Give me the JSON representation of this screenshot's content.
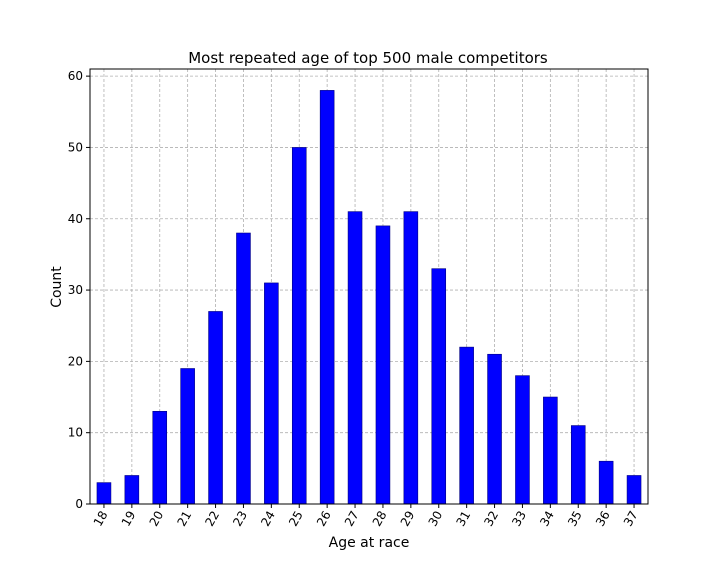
{
  "chart_data": {
    "type": "bar",
    "title": "Most repeated age of top 500 male competitors",
    "xlabel": "Age at race",
    "ylabel": "Count",
    "categories": [
      "18",
      "19",
      "20",
      "21",
      "22",
      "23",
      "24",
      "25",
      "26",
      "27",
      "28",
      "29",
      "30",
      "31",
      "32",
      "33",
      "34",
      "35",
      "36",
      "37"
    ],
    "values": [
      3,
      4,
      13,
      19,
      27,
      38,
      31,
      50,
      58,
      41,
      39,
      41,
      33,
      22,
      21,
      18,
      15,
      11,
      6,
      4
    ],
    "ylim": [
      0,
      61
    ],
    "yticks": [
      0,
      10,
      20,
      30,
      40,
      50,
      60
    ],
    "grid": true,
    "bar_color": "#0000ff",
    "bar_edge_color": "#000080",
    "grid_color": "#b0b0b0"
  }
}
